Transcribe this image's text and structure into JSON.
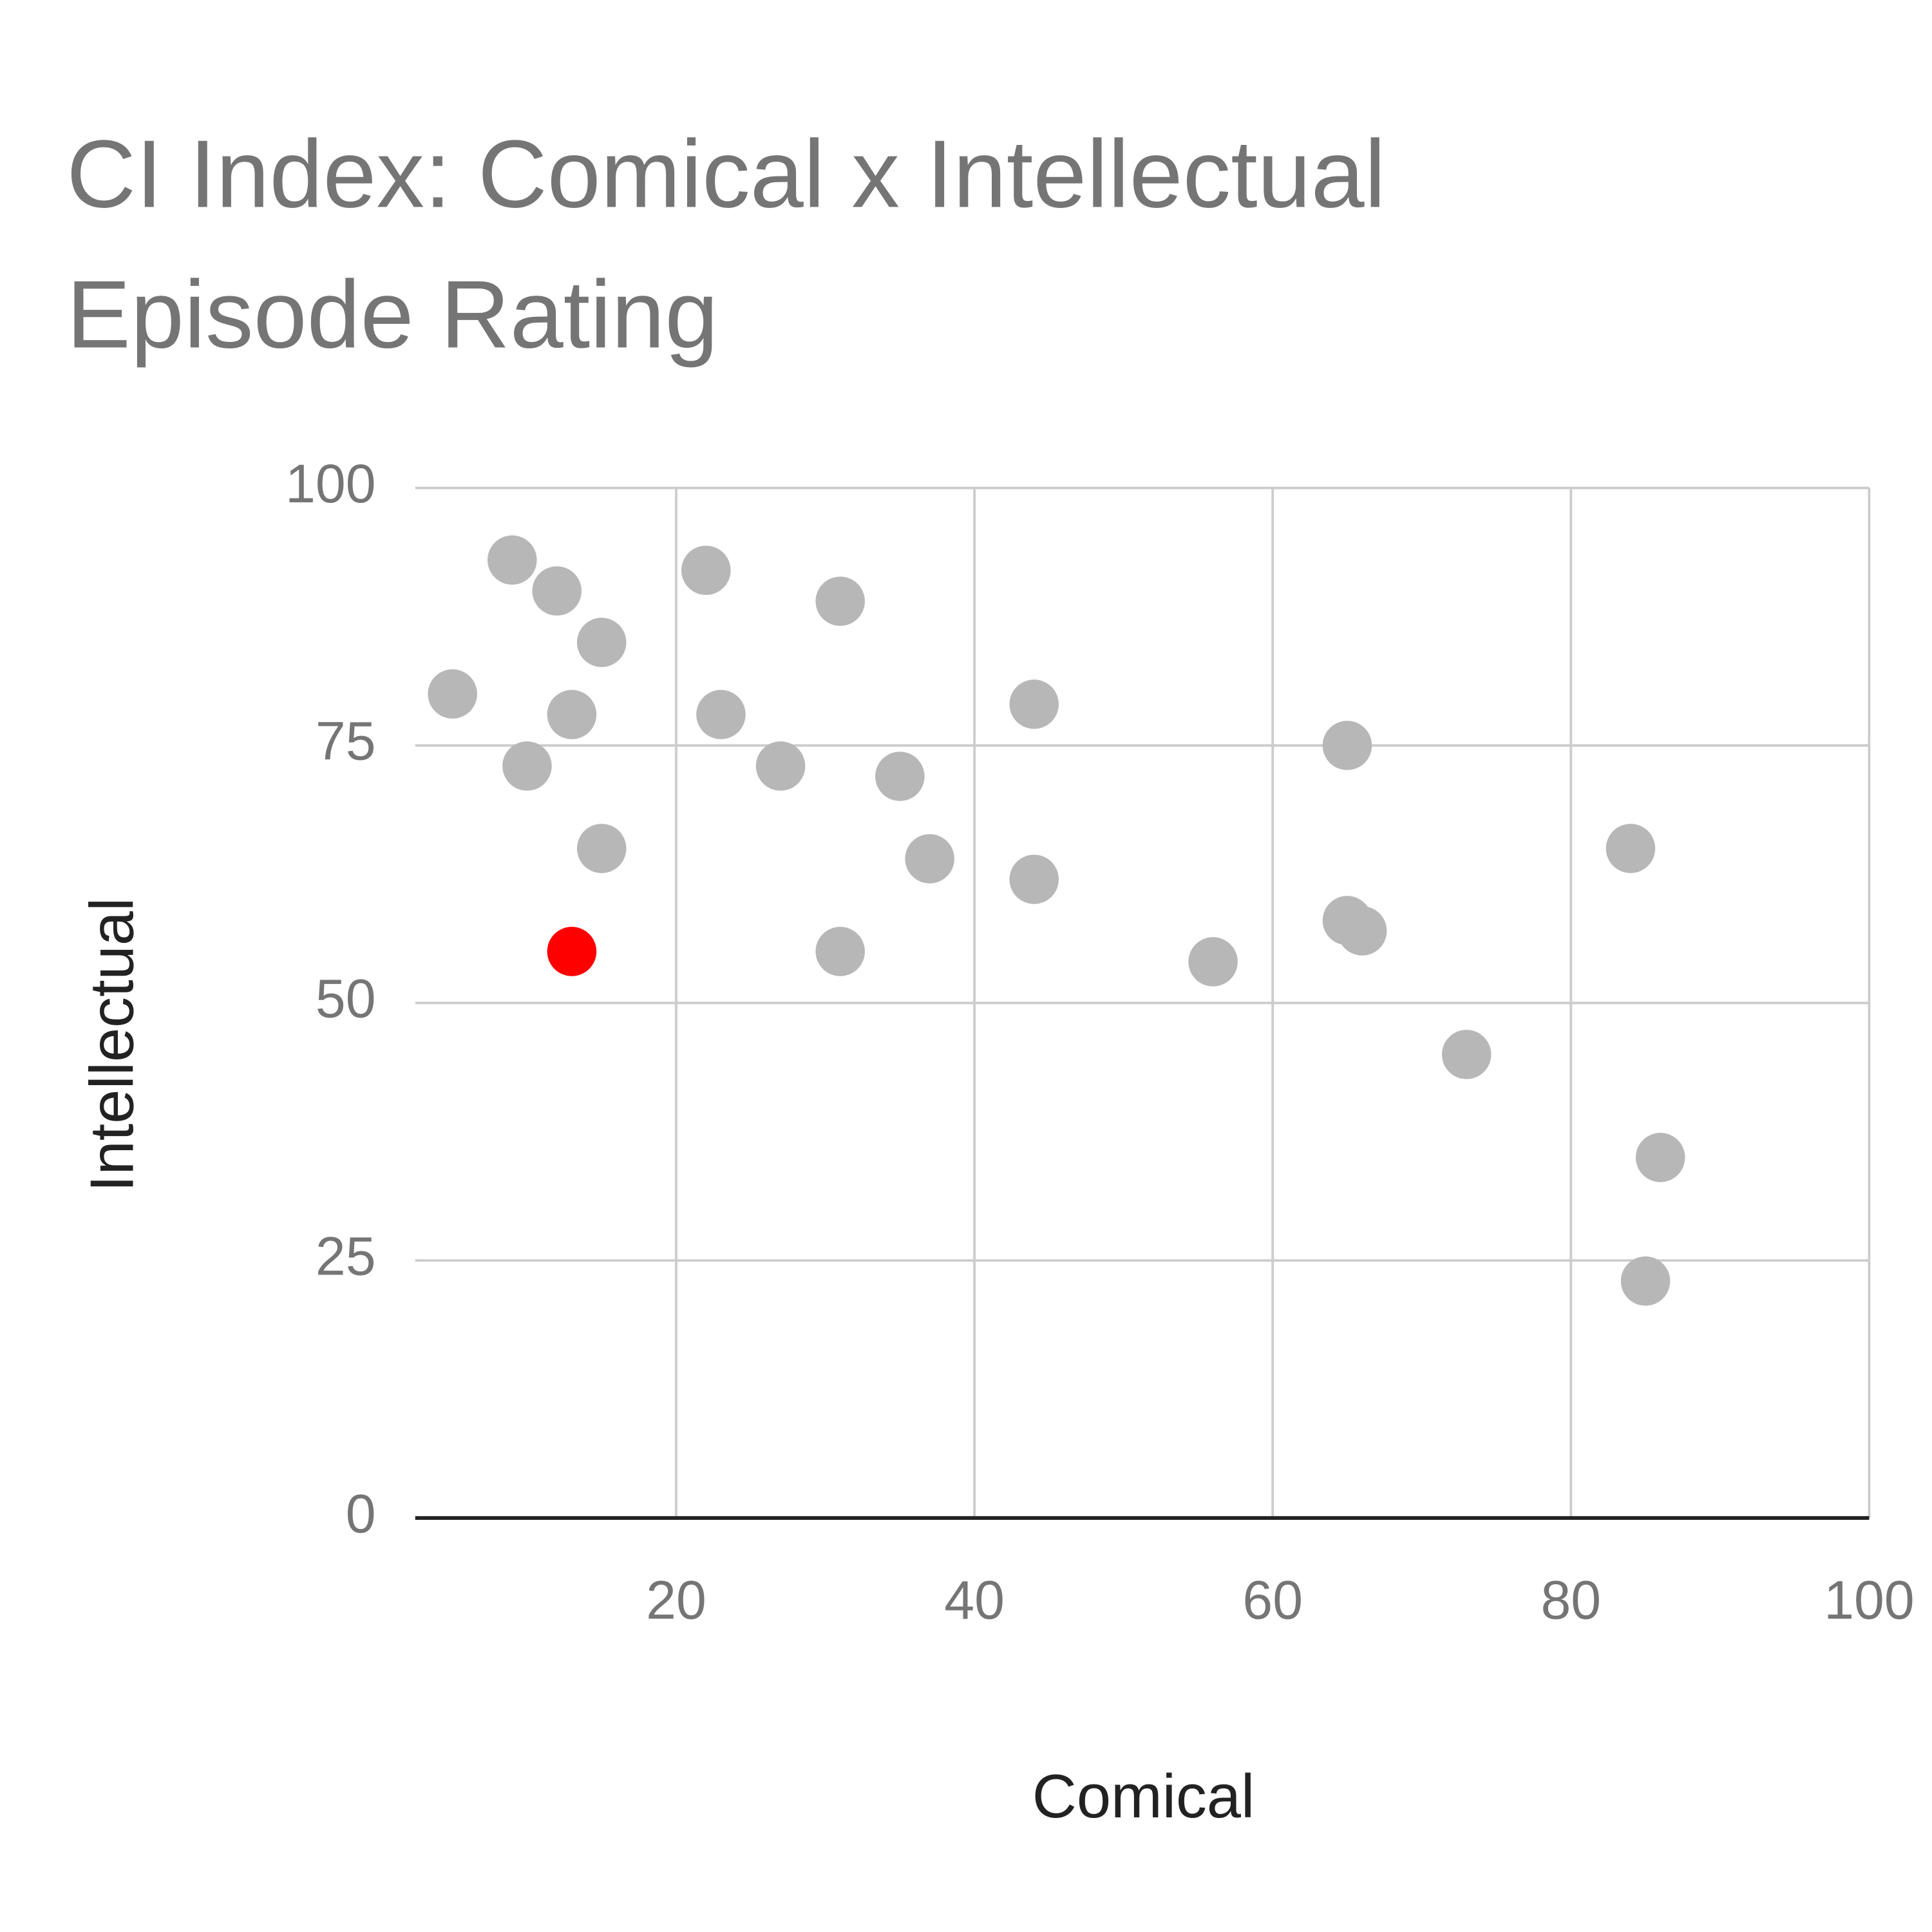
{
  "chart_data": {
    "type": "scatter",
    "title": [
      "CI Index: Comical x Intellectual",
      "Episode Rating"
    ],
    "x_label": "Comical",
    "y_label": "Intellectual",
    "x": [
      9,
      12,
      15,
      5,
      13,
      10,
      15,
      13,
      22,
      23,
      31,
      27,
      35,
      37,
      31,
      44,
      44,
      56,
      65,
      65,
      66,
      73,
      84,
      86,
      85
    ],
    "values": [
      93,
      90,
      85,
      80,
      78,
      73,
      65,
      55,
      92,
      78,
      89,
      73,
      72,
      64,
      55,
      79,
      62,
      54,
      75,
      58,
      57,
      45,
      65,
      35,
      23
    ],
    "colors": [
      "#b7b7b7",
      "#b7b7b7",
      "#b7b7b7",
      "#b7b7b7",
      "#b7b7b7",
      "#b7b7b7",
      "#b7b7b7",
      "#ff0000",
      "#b7b7b7",
      "#b7b7b7",
      "#b7b7b7",
      "#b7b7b7",
      "#b7b7b7",
      "#b7b7b7",
      "#b7b7b7",
      "#b7b7b7",
      "#b7b7b7",
      "#b7b7b7",
      "#b7b7b7",
      "#b7b7b7",
      "#b7b7b7",
      "#b7b7b7",
      "#b7b7b7",
      "#b7b7b7",
      "#b7b7b7"
    ],
    "xlim": [
      2.5,
      100
    ],
    "xticks": [
      20,
      40,
      60,
      80,
      100
    ],
    "ylim": [
      0,
      100
    ],
    "yticks": [
      0,
      25,
      50,
      75,
      100
    ],
    "grid": true
  }
}
